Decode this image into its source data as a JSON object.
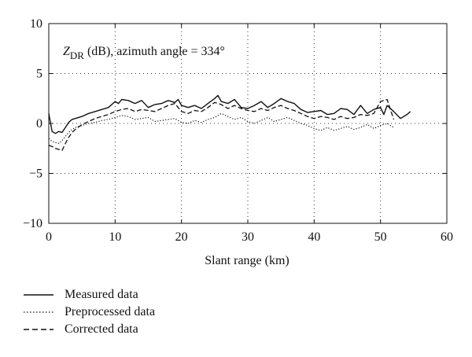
{
  "chart_data": {
    "type": "line",
    "annotation": {
      "symbol": "Z",
      "subscript": "DR",
      "text": " (dB), azimuth angle = 334°"
    },
    "xlabel": "Slant range (km)",
    "ylabel": "",
    "xlim": [
      0,
      60
    ],
    "ylim": [
      -10,
      10
    ],
    "xticks": [
      0,
      10,
      20,
      30,
      40,
      50,
      60
    ],
    "yticks": [
      -10,
      -5,
      0,
      5,
      10
    ],
    "grid": "dotted",
    "legend_position": "bottom-left, below plot",
    "series": [
      {
        "name": "Measured data",
        "style": "solid",
        "color": "#111111",
        "x": [
          0,
          0.5,
          1,
          1.5,
          2,
          2.5,
          3,
          3.5,
          4,
          5,
          6,
          7,
          8,
          9,
          10,
          10.5,
          11,
          12,
          13,
          14,
          15,
          16,
          17,
          18,
          19,
          19.5,
          20,
          21,
          22,
          23,
          24,
          25,
          25.5,
          26,
          27,
          28,
          29,
          30,
          31,
          32,
          33,
          34,
          35,
          36,
          37,
          38,
          39,
          40,
          41,
          42,
          43,
          44,
          45,
          46,
          47,
          48,
          49,
          50,
          50.5,
          51,
          52,
          53,
          54,
          54.5
        ],
        "y": [
          1.0,
          -0.8,
          -1.0,
          -0.8,
          -0.9,
          -0.4,
          0.1,
          0.4,
          0.5,
          0.7,
          1.0,
          1.2,
          1.4,
          1.6,
          2.2,
          2.0,
          2.4,
          2.3,
          2.0,
          2.3,
          1.6,
          1.9,
          2.0,
          2.3,
          2.1,
          2.4,
          1.8,
          1.6,
          1.8,
          1.5,
          2.0,
          2.5,
          2.8,
          2.2,
          2.0,
          2.4,
          1.6,
          1.5,
          1.8,
          2.2,
          1.6,
          2.0,
          2.5,
          2.2,
          2.0,
          1.4,
          1.1,
          1.2,
          1.3,
          0.9,
          1.0,
          1.5,
          1.4,
          0.9,
          1.8,
          1.0,
          1.4,
          1.6,
          0.9,
          1.8,
          1.2,
          0.5,
          0.9,
          1.2
        ]
      },
      {
        "name": "Preprocessed data",
        "style": "dotted",
        "color": "#111111",
        "x": [
          0,
          0.5,
          1,
          1.5,
          2,
          2.5,
          3,
          3.5,
          4,
          5,
          6,
          7,
          8,
          9,
          10,
          11,
          12,
          13,
          14,
          15,
          16,
          17,
          18,
          19,
          20,
          21,
          22,
          23,
          24,
          25,
          26,
          27,
          28,
          29,
          30,
          31,
          32,
          33,
          34,
          35,
          36,
          37,
          38,
          39,
          40,
          41,
          42,
          43,
          44,
          45,
          46,
          47,
          48,
          49,
          50,
          51,
          52
        ],
        "y": [
          -1.5,
          -1.8,
          -1.9,
          -2.0,
          -1.7,
          -1.3,
          -0.9,
          -0.6,
          -0.4,
          -0.2,
          0.0,
          0.1,
          0.3,
          0.4,
          0.6,
          0.8,
          0.7,
          0.4,
          0.5,
          0.6,
          0.2,
          0.3,
          0.4,
          0.5,
          0.1,
          0.0,
          0.3,
          0.1,
          0.4,
          0.6,
          1.0,
          0.7,
          0.4,
          0.6,
          0.2,
          0.0,
          0.3,
          0.6,
          0.2,
          0.4,
          0.6,
          0.3,
          0.0,
          -0.2,
          -0.5,
          -0.7,
          -0.4,
          -0.7,
          -0.5,
          -0.3,
          -0.6,
          -0.4,
          -0.1,
          -0.5,
          -0.2,
          0.0,
          -0.4
        ]
      },
      {
        "name": "Corrected data",
        "style": "dashed",
        "color": "#111111",
        "x": [
          0,
          0.5,
          1,
          1.5,
          2,
          2.5,
          3,
          3.5,
          4,
          5,
          6,
          7,
          8,
          9,
          10,
          11,
          12,
          13,
          14,
          15,
          16,
          17,
          18,
          19,
          20,
          21,
          22,
          23,
          24,
          25,
          26,
          27,
          28,
          29,
          30,
          31,
          32,
          33,
          34,
          35,
          36,
          37,
          38,
          39,
          40,
          41,
          42,
          43,
          44,
          45,
          46,
          47,
          48,
          49,
          50,
          51,
          52
        ],
        "y": [
          -2.2,
          -2.3,
          -2.5,
          -2.6,
          -2.7,
          -2.0,
          -1.4,
          -0.9,
          -0.6,
          -0.1,
          0.2,
          0.5,
          0.7,
          0.9,
          1.2,
          1.4,
          1.5,
          1.2,
          1.4,
          1.3,
          1.2,
          1.5,
          1.8,
          2.0,
          1.2,
          1.0,
          1.3,
          1.2,
          1.6,
          2.1,
          1.9,
          1.5,
          1.8,
          1.5,
          1.3,
          1.2,
          1.5,
          1.3,
          1.6,
          1.8,
          1.5,
          1.3,
          1.0,
          0.7,
          0.5,
          0.7,
          0.6,
          0.4,
          0.7,
          0.5,
          0.6,
          0.9,
          0.8,
          1.0,
          2.2,
          2.4,
          0.4
        ]
      }
    ]
  }
}
